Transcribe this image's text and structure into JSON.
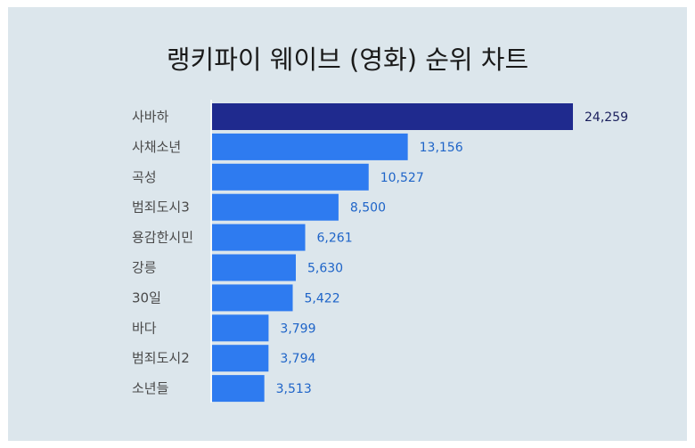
{
  "chart_data": {
    "type": "bar",
    "orientation": "horizontal",
    "title": "랭키파이 웨이브 (영화) 순위 차트",
    "categories": [
      "사바하",
      "사채소년",
      "곡성",
      "범죄도시3",
      "용감한시민",
      "강릉",
      "30일",
      "바다",
      "범죄도시2",
      "소년들"
    ],
    "values": [
      24259,
      13156,
      10527,
      8500,
      6261,
      5630,
      5422,
      3799,
      3794,
      3513
    ],
    "value_labels": [
      "24,259",
      "13,156",
      "10,527",
      "8,500",
      "6,261",
      "5,630",
      "5,422",
      "3,799",
      "3,794",
      "3,513"
    ],
    "xlim": [
      0,
      27000
    ],
    "grid": false,
    "colors": {
      "top_bar": "#1f2a8e",
      "bar": "#2e7bf0",
      "top_label": "#1a1f5c",
      "label": "#1e64c8",
      "background": "#dce6ec"
    }
  }
}
